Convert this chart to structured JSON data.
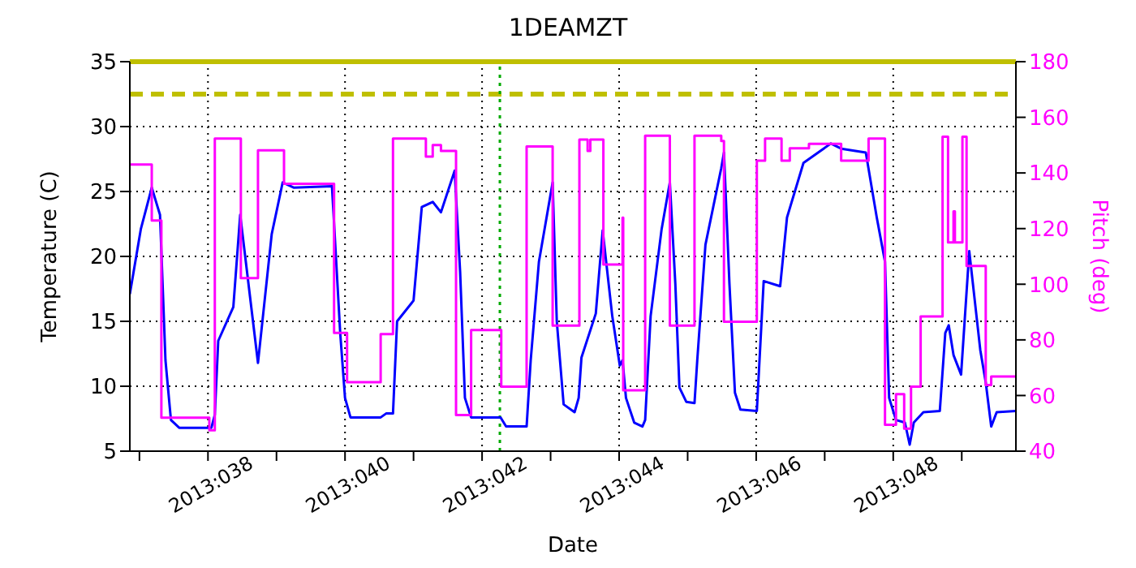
{
  "chart_data": {
    "type": "line",
    "title": "1DEAMZT",
    "xlabel": "Date",
    "ylabel": "Temperature (C)",
    "y2label": "Pitch (deg)",
    "xlim": [
      "2013-02-05T20:38",
      "2013-02-18T18:58"
    ],
    "xticks": [
      {
        "value": "2013-02-06",
        "label": null
      },
      {
        "value": "2013-02-07",
        "label": "2013:038"
      },
      {
        "value": "2013-02-08",
        "label": null
      },
      {
        "value": "2013-02-09",
        "label": "2013:040"
      },
      {
        "value": "2013-02-10",
        "label": null
      },
      {
        "value": "2013-02-11",
        "label": "2013:042"
      },
      {
        "value": "2013-02-12",
        "label": null
      },
      {
        "value": "2013-02-13",
        "label": "2013:044"
      },
      {
        "value": "2013-02-14",
        "label": null
      },
      {
        "value": "2013-02-15",
        "label": "2013:046"
      },
      {
        "value": "2013-02-16",
        "label": null
      },
      {
        "value": "2013-02-17",
        "label": "2013:048"
      },
      {
        "value": "2013-02-18",
        "label": null
      }
    ],
    "ylim": [
      5,
      35
    ],
    "yticks": [
      5,
      10,
      15,
      20,
      25,
      30,
      35
    ],
    "y2lim": [
      40,
      180
    ],
    "y2ticks": [
      40,
      60,
      80,
      100,
      120,
      140,
      160,
      180
    ],
    "grid": true,
    "series": [
      {
        "type": "line",
        "color": "#0000ff",
        "x": [
          "2013-02-05T20:38",
          "2013-02-06T00:29",
          "2013-02-06T04:19",
          "2013-02-06T07:12",
          "2013-02-06T09:07",
          "2013-02-06T11:02",
          "2013-02-06T13:55",
          "2013-02-07T01:12",
          "2013-02-07T02:24",
          "2013-02-07T03:36",
          "2013-02-07T08:53",
          "2013-02-07T11:17",
          "2013-02-07T17:31",
          "2013-02-07T22:19",
          "2013-02-08T02:10",
          "2013-02-08T06:00",
          "2013-02-08T19:26",
          "2013-02-08T22:19",
          "2013-02-09T00:00",
          "2013-02-09T01:55",
          "2013-02-09T12:29",
          "2013-02-09T14:24",
          "2013-02-09T16:48",
          "2013-02-09T18:14",
          "2013-02-10T00:00",
          "2013-02-10T02:53",
          "2013-02-10T06:43",
          "2013-02-10T09:36",
          "2013-02-10T14:24",
          "2013-02-10T16:19",
          "2013-02-10T18:00",
          "2013-02-10T20:10",
          "2013-02-11T06:29",
          "2013-02-11T08:24",
          "2013-02-11T15:36",
          "2013-02-11T17:02",
          "2013-02-11T19:55",
          "2013-02-12T00:43",
          "2013-02-12T02:10",
          "2013-02-12T04:34",
          "2013-02-12T08:24",
          "2013-02-12T09:50",
          "2013-02-12T10:48",
          "2013-02-12T15:50",
          "2013-02-12T18:14",
          "2013-02-12T21:36",
          "2013-02-13T00:14",
          "2013-02-13T01:12",
          "2013-02-13T02:24",
          "2013-02-13T05:17",
          "2013-02-13T08:10",
          "2013-02-13T09:07",
          "2013-02-13T11:02",
          "2013-02-13T14:53",
          "2013-02-13T17:46",
          "2013-02-13T19:41",
          "2013-02-13T21:07",
          "2013-02-13T23:31",
          "2013-02-14T02:24",
          "2013-02-14T03:22",
          "2013-02-14T06:14",
          "2013-02-14T11:46",
          "2013-02-14T12:43",
          "2013-02-14T14:38",
          "2013-02-14T16:34",
          "2013-02-14T18:29",
          "2013-02-15T00:14",
          "2013-02-15T02:38",
          "2013-02-15T08:24",
          "2013-02-15T10:48",
          "2013-02-15T16:34",
          "2013-02-16T02:10",
          "2013-02-16T05:46",
          "2013-02-16T14:24",
          "2013-02-16T18:14",
          "2013-02-16T21:07",
          "2013-02-16T22:34",
          "2013-02-17T00:58",
          "2013-02-17T04:05",
          "2013-02-17T05:46",
          "2013-02-17T07:12",
          "2013-02-17T10:34",
          "2013-02-17T16:19",
          "2013-02-17T18:14",
          "2013-02-17T19:26",
          "2013-02-17T21:07",
          "2013-02-17T23:46",
          "2013-02-18T02:38",
          "2013-02-18T06:29",
          "2013-02-18T08:24",
          "2013-02-18T10:19",
          "2013-02-18T12:14",
          "2013-02-18T18:58"
        ],
        "values": [
          17.1,
          22.1,
          25.3,
          23.2,
          12.0,
          7.4,
          6.8,
          6.8,
          7.8,
          13.5,
          16.1,
          23.2,
          11.8,
          21.7,
          25.7,
          25.3,
          25.4,
          14.1,
          9.1,
          7.6,
          7.6,
          7.9,
          7.9,
          15.0,
          16.6,
          23.8,
          24.2,
          23.4,
          26.6,
          18.8,
          9.1,
          7.6,
          7.6,
          6.9,
          6.9,
          12.0,
          19.6,
          25.7,
          15.0,
          8.6,
          8.0,
          9.1,
          12.2,
          15.6,
          22.0,
          15.4,
          11.6,
          12.0,
          9.1,
          7.2,
          6.9,
          7.4,
          15.4,
          22.1,
          25.7,
          17.9,
          9.9,
          8.8,
          8.7,
          12.0,
          20.9,
          26.8,
          28.0,
          17.9,
          9.5,
          8.2,
          8.1,
          18.1,
          17.7,
          23.0,
          27.2,
          28.7,
          28.3,
          28.0,
          23.0,
          19.6,
          9.1,
          7.4,
          7.2,
          5.5,
          7.2,
          8.0,
          8.1,
          14.1,
          14.7,
          12.4,
          10.9,
          20.4,
          12.8,
          10.3,
          6.9,
          8.0,
          8.1
        ]
      },
      {
        "type": "step",
        "color": "#ff00ff",
        "axis": "y2",
        "x": [
          "2013-02-05T20:38",
          "2013-02-06T04:19",
          "2013-02-06T07:41",
          "2013-02-07T00:29",
          "2013-02-07T02:24",
          "2013-02-07T11:31",
          "2013-02-07T17:31",
          "2013-02-08T02:38",
          "2013-02-08T20:10",
          "2013-02-09T00:43",
          "2013-02-09T12:29",
          "2013-02-09T16:48",
          "2013-02-10T04:19",
          "2013-02-10T06:43",
          "2013-02-10T09:36",
          "2013-02-10T14:53",
          "2013-02-10T20:10",
          "2013-02-11T06:43",
          "2013-02-11T15:36",
          "2013-02-12T00:43",
          "2013-02-12T10:05",
          "2013-02-12T12:58",
          "2013-02-12T13:55",
          "2013-02-12T18:29",
          "2013-02-13T01:12",
          "2013-02-13T01:26",
          "2013-02-13T09:07",
          "2013-02-13T17:46",
          "2013-02-14T02:24",
          "2013-02-14T11:46",
          "2013-02-14T12:43",
          "2013-02-15T00:14",
          "2013-02-15T03:07",
          "2013-02-15T08:53",
          "2013-02-15T11:46",
          "2013-02-15T18:29",
          "2013-02-16T05:46",
          "2013-02-16T15:22",
          "2013-02-16T21:07",
          "2013-02-17T00:58",
          "2013-02-17T03:50",
          "2013-02-17T06:14",
          "2013-02-17T09:36",
          "2013-02-17T17:17",
          "2013-02-17T19:12",
          "2013-02-17T21:07",
          "2013-02-17T21:36",
          "2013-02-18T00:14",
          "2013-02-18T01:41",
          "2013-02-18T08:24",
          "2013-02-18T10:19",
          "2013-02-18T18:58"
        ],
        "values": [
          143.0,
          122.9,
          52.0,
          47.5,
          152.4,
          102.2,
          148.1,
          136.1,
          82.5,
          64.8,
          82.1,
          152.4,
          145.9,
          150.0,
          147.9,
          53.0,
          83.5,
          63.2,
          149.5,
          85.1,
          152.0,
          147.9,
          152.0,
          107.1,
          123.9,
          61.9,
          153.4,
          85.1,
          153.4,
          151.5,
          86.5,
          144.4,
          152.4,
          144.4,
          148.9,
          150.5,
          144.4,
          152.4,
          49.5,
          60.5,
          48.1,
          63.2,
          88.4,
          153.0,
          115.0,
          126.2,
          115.0,
          153.0,
          106.6,
          63.8,
          66.8,
          66.8
        ]
      }
    ],
    "ref_lines": [
      {
        "axis": "y",
        "value": 35,
        "label": null,
        "color": "#bfbf00",
        "line_style": "solid"
      },
      {
        "axis": "y",
        "value": 32.5,
        "label": null,
        "color": "#bfbf00",
        "line_style": "dashed"
      },
      {
        "axis": "x",
        "value": "2013-02-11T06:14",
        "label": null,
        "color": "#00aa00",
        "line_style": "dotted"
      }
    ]
  }
}
